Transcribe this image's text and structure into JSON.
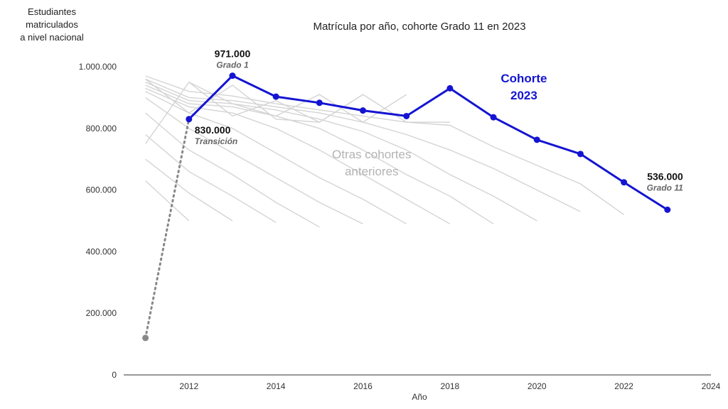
{
  "chart_data": {
    "type": "line",
    "title": "Matrícula por año, cohorte Grado 11 en 2023",
    "xlabel": "Año",
    "ylabel": "Estudiantes matriculados\na nivel nacional",
    "xlim": [
      2010.5,
      2024
    ],
    "ylim": [
      0,
      1000000
    ],
    "x_ticks": [
      2012,
      2014,
      2016,
      2018,
      2020,
      2022,
      2024
    ],
    "y_ticks": [
      {
        "value": 0,
        "label": "0"
      },
      {
        "value": 200000,
        "label": "200.000"
      },
      {
        "value": 400000,
        "label": "400.000"
      },
      {
        "value": 600000,
        "label": "600.000"
      },
      {
        "value": 800000,
        "label": "800.000"
      },
      {
        "value": 1000000,
        "label": "1.000.000"
      }
    ],
    "grid": false,
    "main_series": {
      "name": "Cohorte 2023",
      "color": "#1414d2",
      "x": [
        2012,
        2013,
        2014,
        2015,
        2016,
        2017,
        2018,
        2019,
        2020,
        2021,
        2022,
        2023
      ],
      "y": [
        830000,
        971000,
        903000,
        883000,
        858000,
        840000,
        930000,
        836000,
        763000,
        717000,
        625000,
        536000
      ]
    },
    "preschool_link": {
      "color": "#888888",
      "x": [
        2011,
        2012
      ],
      "y": [
        120000,
        830000
      ]
    },
    "background_series_color": "#d4d4d4",
    "background_series": [
      {
        "x": [
          2011,
          2012
        ],
        "y": [
          630000,
          500000
        ]
      },
      {
        "x": [
          2011,
          2012,
          2013
        ],
        "y": [
          700000,
          590000,
          500000
        ]
      },
      {
        "x": [
          2011,
          2012,
          2013,
          2014
        ],
        "y": [
          780000,
          660000,
          580000,
          495000
        ]
      },
      {
        "x": [
          2011,
          2012,
          2013,
          2014,
          2015
        ],
        "y": [
          850000,
          730000,
          650000,
          560000,
          480000
        ]
      },
      {
        "x": [
          2011,
          2012,
          2013,
          2014,
          2015,
          2016
        ],
        "y": [
          900000,
          800000,
          720000,
          640000,
          560000,
          490000
        ]
      },
      {
        "x": [
          2011,
          2012,
          2013,
          2014,
          2015,
          2016,
          2017
        ],
        "y": [
          920000,
          850000,
          800000,
          720000,
          640000,
          570000,
          490000
        ]
      },
      {
        "x": [
          2011,
          2012,
          2013,
          2014,
          2015,
          2016,
          2017,
          2018
        ],
        "y": [
          930000,
          870000,
          850000,
          800000,
          730000,
          650000,
          570000,
          490000
        ]
      },
      {
        "x": [
          2011,
          2012,
          2013,
          2014,
          2015,
          2016,
          2017,
          2018,
          2019
        ],
        "y": [
          940000,
          880000,
          870000,
          840000,
          800000,
          730000,
          650000,
          580000,
          490000
        ]
      },
      {
        "x": [
          2011,
          2012,
          2013,
          2014,
          2015,
          2016,
          2017,
          2018,
          2019,
          2020
        ],
        "y": [
          950000,
          890000,
          880000,
          860000,
          830000,
          790000,
          730000,
          650000,
          580000,
          500000
        ]
      },
      {
        "x": [
          2011,
          2012,
          2013,
          2014,
          2015,
          2016,
          2017,
          2018,
          2019,
          2020,
          2021
        ],
        "y": [
          960000,
          900000,
          890000,
          870000,
          850000,
          820000,
          780000,
          730000,
          670000,
          600000,
          530000
        ]
      },
      {
        "x": [
          2011,
          2012,
          2013,
          2014,
          2015,
          2016,
          2017,
          2018,
          2019,
          2020,
          2021,
          2022
        ],
        "y": [
          970000,
          920000,
          905000,
          880000,
          860000,
          840000,
          820000,
          810000,
          740000,
          680000,
          620000,
          520000
        ]
      },
      {
        "x": [
          2011,
          2012,
          2013,
          2014,
          2015,
          2016,
          2017,
          2018
        ],
        "y": [
          750000,
          950000,
          840000,
          890000,
          820000,
          910000,
          820000,
          820000
        ]
      },
      {
        "x": [
          2012,
          2013,
          2014,
          2015,
          2016,
          2017
        ],
        "y": [
          950000,
          880000,
          840000,
          910000,
          820000,
          910000
        ]
      },
      {
        "x": [
          2011,
          2012,
          2013,
          2014,
          2015,
          2016
        ],
        "y": [
          960000,
          850000,
          940000,
          830000,
          820000,
          910000
        ]
      }
    ],
    "annotations": [
      {
        "text": "971.000",
        "sub": "Grado 1",
        "x": 2013,
        "y": 971000,
        "anchor": "above"
      },
      {
        "text": "830.000",
        "sub": "Transición",
        "x": 2012,
        "y": 830000,
        "anchor": "right-below"
      },
      {
        "text": "536.000",
        "sub": "Grado 11",
        "x": 2023,
        "y": 536000,
        "anchor": "left-above"
      }
    ],
    "series_label": {
      "lines": [
        "Cohorte",
        "2023"
      ],
      "x": 2019.7,
      "y": 880000
    },
    "other_label": {
      "lines": [
        "Otras cohortes",
        "anteriores"
      ],
      "x": 2016.2,
      "y": 670000
    }
  }
}
